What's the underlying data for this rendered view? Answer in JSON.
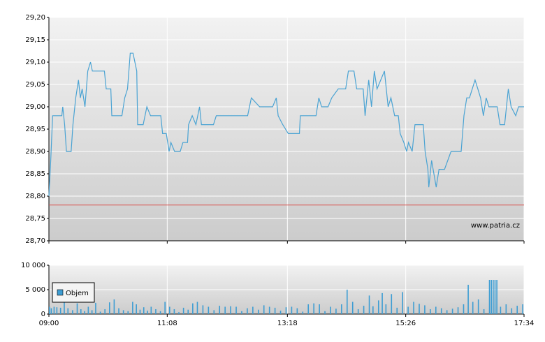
{
  "chart_data": [
    {
      "type": "line",
      "watermark": "www.patria.cz",
      "reference_value": 28.78,
      "reference_color": "#d9534f",
      "x": [
        540,
        542,
        544,
        554,
        555,
        557,
        559,
        564,
        566,
        569,
        572,
        574,
        576,
        579,
        582,
        585,
        587,
        600,
        602,
        607,
        608,
        619,
        622,
        625,
        628,
        631,
        635,
        636,
        642,
        646,
        650,
        661,
        663,
        667,
        670,
        672,
        676,
        682,
        685,
        690,
        691,
        695,
        699,
        703,
        705,
        718,
        721,
        755,
        759,
        768,
        782,
        786,
        788,
        793,
        799,
        811,
        812,
        829,
        832,
        835,
        842,
        846,
        853,
        861,
        864,
        870,
        873,
        880,
        882,
        886,
        889,
        892,
        895,
        899,
        903,
        907,
        910,
        914,
        918,
        920,
        924,
        927,
        929,
        933,
        936,
        945,
        947,
        950,
        951,
        954,
        959,
        962,
        968,
        975,
        986,
        989,
        992,
        995,
        1001,
        1004,
        1007,
        1010,
        1013,
        1016,
        1025,
        1028,
        1033,
        1037,
        1040,
        1045,
        1048,
        1054
      ],
      "series": [
        {
          "color": "#4aa3d3",
          "values": [
            28.8,
            28.88,
            28.98,
            28.98,
            29.0,
            28.96,
            28.9,
            28.9,
            28.96,
            29.02,
            29.06,
            29.02,
            29.04,
            29.0,
            29.08,
            29.1,
            29.08,
            29.08,
            29.04,
            29.04,
            28.98,
            28.98,
            29.02,
            29.04,
            29.12,
            29.12,
            29.08,
            28.96,
            28.96,
            29.0,
            28.98,
            28.98,
            28.94,
            28.94,
            28.9,
            28.92,
            28.9,
            28.9,
            28.92,
            28.92,
            28.96,
            28.98,
            28.96,
            29.0,
            28.96,
            28.96,
            28.98,
            28.98,
            29.02,
            29.0,
            29.0,
            29.02,
            28.98,
            28.96,
            28.94,
            28.94,
            28.98,
            28.98,
            29.02,
            29.0,
            29.0,
            29.02,
            29.04,
            29.04,
            29.08,
            29.08,
            29.04,
            29.04,
            28.98,
            29.06,
            29.0,
            29.08,
            29.04,
            29.06,
            29.08,
            29.0,
            29.02,
            28.98,
            28.98,
            28.94,
            28.92,
            28.9,
            28.92,
            28.9,
            28.96,
            28.96,
            28.9,
            28.86,
            28.82,
            28.88,
            28.82,
            28.86,
            28.86,
            28.9,
            28.9,
            28.98,
            29.02,
            29.02,
            29.06,
            29.04,
            29.02,
            28.98,
            29.02,
            29.0,
            29.0,
            28.96,
            28.96,
            29.04,
            29.0,
            28.98,
            29.0,
            29.0
          ]
        }
      ],
      "xlim": [
        540,
        1054
      ],
      "ylim": [
        28.7,
        29.2
      ],
      "yticks": [
        {
          "value": 28.7,
          "label": "28,70"
        },
        {
          "value": 28.75,
          "label": "28,75"
        },
        {
          "value": 28.8,
          "label": "28,80"
        },
        {
          "value": 28.85,
          "label": "28,85"
        },
        {
          "value": 28.9,
          "label": "28,90"
        },
        {
          "value": 28.95,
          "label": "28,95"
        },
        {
          "value": 29.0,
          "label": "29,00"
        },
        {
          "value": 29.05,
          "label": "29,05"
        },
        {
          "value": 29.1,
          "label": "29,10"
        },
        {
          "value": 29.15,
          "label": "29,15"
        },
        {
          "value": 29.2,
          "label": "29,20"
        }
      ],
      "grid": true
    },
    {
      "type": "bar",
      "x": [
        540,
        542,
        545,
        548,
        552,
        556,
        560,
        565,
        570,
        574,
        578,
        582,
        586,
        590,
        595,
        600,
        605,
        610,
        615,
        620,
        625,
        630,
        634,
        638,
        642,
        646,
        650,
        655,
        660,
        665,
        670,
        675,
        680,
        685,
        690,
        695,
        700,
        706,
        712,
        718,
        724,
        730,
        736,
        742,
        748,
        754,
        760,
        766,
        772,
        778,
        784,
        790,
        796,
        802,
        808,
        814,
        820,
        826,
        832,
        838,
        844,
        850,
        856,
        862,
        868,
        874,
        880,
        886,
        890,
        896,
        900,
        904,
        910,
        916,
        922,
        928,
        934,
        940,
        946,
        952,
        958,
        964,
        970,
        976,
        982,
        988,
        993,
        998,
        1004,
        1010,
        1016,
        1018,
        1020,
        1022,
        1024,
        1028,
        1034,
        1040,
        1046,
        1052
      ],
      "series": [
        {
          "name": "Objem",
          "color": "#3d9dd3",
          "values": [
            1500,
            1200,
            1500,
            1400,
            1300,
            3000,
            1200,
            800,
            2200,
            1000,
            600,
            1500,
            800,
            2300,
            500,
            1000,
            2400,
            3000,
            1200,
            800,
            600,
            2500,
            2000,
            900,
            1400,
            700,
            1500,
            1000,
            600,
            2500,
            1500,
            1000,
            400,
            1300,
            900,
            2200,
            2500,
            1800,
            1500,
            800,
            1700,
            1500,
            1600,
            1500,
            600,
            1200,
            1500,
            900,
            1800,
            1500,
            1300,
            700,
            1400,
            1500,
            1200,
            500,
            2000,
            2200,
            2000,
            600,
            1500,
            1100,
            2000,
            5000,
            2500,
            1000,
            1700,
            3800,
            1600,
            2800,
            4300,
            2000,
            4100,
            1300,
            4500,
            1500,
            2500,
            2100,
            1800,
            1000,
            1500,
            1200,
            800,
            1100,
            1400,
            2000,
            6000,
            2500,
            3000,
            1000,
            7000,
            7000,
            7000,
            7000,
            7000,
            1500,
            2000,
            1200,
            1700,
            2000
          ]
        }
      ],
      "xlim": [
        540,
        1054
      ],
      "xticks": [
        {
          "value": 540,
          "label": "09:00"
        },
        {
          "value": 668,
          "label": "11:08"
        },
        {
          "value": 798,
          "label": "13:18"
        },
        {
          "value": 926,
          "label": "15:26"
        },
        {
          "value": 1054,
          "label": "17:34"
        }
      ],
      "ylim": [
        0,
        10000
      ],
      "yticks": [
        0,
        {
          "value": 5000,
          "label": "5 000"
        },
        {
          "value": 10000,
          "label": "10 000"
        }
      ],
      "grid": true
    }
  ]
}
